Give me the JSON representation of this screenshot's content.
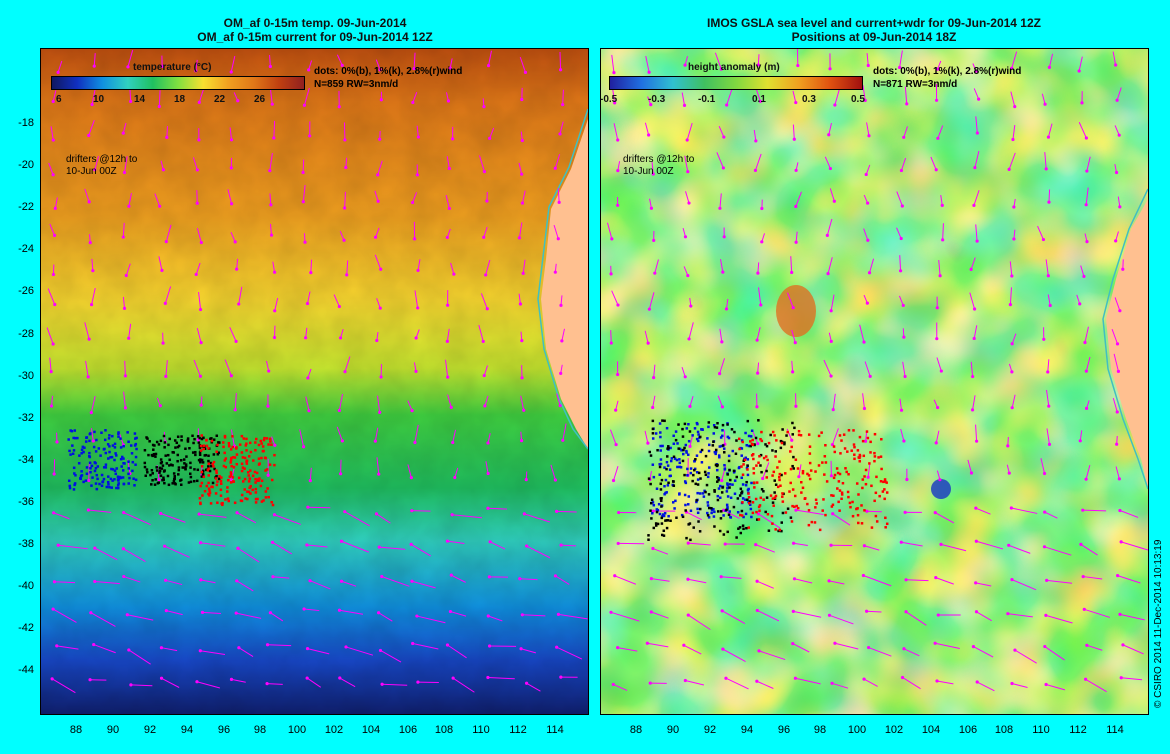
{
  "left": {
    "title1": "OM_af 0-15m temp. 09-Jun-2014",
    "title2": "OM_af 0-15m current for 09-Jun-2014 12Z",
    "colorbar_title": "temperature (°C)",
    "colorbar_ticks": [
      "6",
      "10",
      "14",
      "18",
      "22",
      "26"
    ],
    "dots_legend": "dots: 0%(b), 1%(k), 2.8%(r)wind",
    "n_line": "N=859 RW=3nm/d",
    "drifters_note": [
      "drifters @12h to",
      "10-Jun 00Z"
    ]
  },
  "right": {
    "title1": "IMOS GSLA sea level and current+wdr for 09-Jun-2014 12Z",
    "title2": "Positions at 09-Jun-2014 18Z",
    "colorbar_title": "height anomaly (m)",
    "colorbar_ticks": [
      "-0.5",
      "-0.3",
      "-0.1",
      "0.1",
      "0.3",
      "0.5"
    ],
    "dots_legend": "dots: 0%(b), 1%(k), 2.8%(r)wind",
    "n_line": "N=871 RW=3nm/d",
    "drifters_note": [
      "drifters @12h to",
      "10-Jun 00Z"
    ]
  },
  "axes": {
    "y_ticks": [
      "-18",
      "-20",
      "-22",
      "-24",
      "-26",
      "-28",
      "-30",
      "-32",
      "-34",
      "-36",
      "-38",
      "-40",
      "-42",
      "-44"
    ],
    "x_ticks": [
      "88",
      "90",
      "92",
      "94",
      "96",
      "98",
      "100",
      "102",
      "104",
      "106",
      "108",
      "110",
      "112",
      "114"
    ]
  },
  "credit": "© CSIRO 2014   11-Dec-2014 10:13:19",
  "colors": {
    "background": "#00ffff",
    "vector": "#ff00ff",
    "coast": "#40c0c0",
    "land": "#ffc090"
  }
}
